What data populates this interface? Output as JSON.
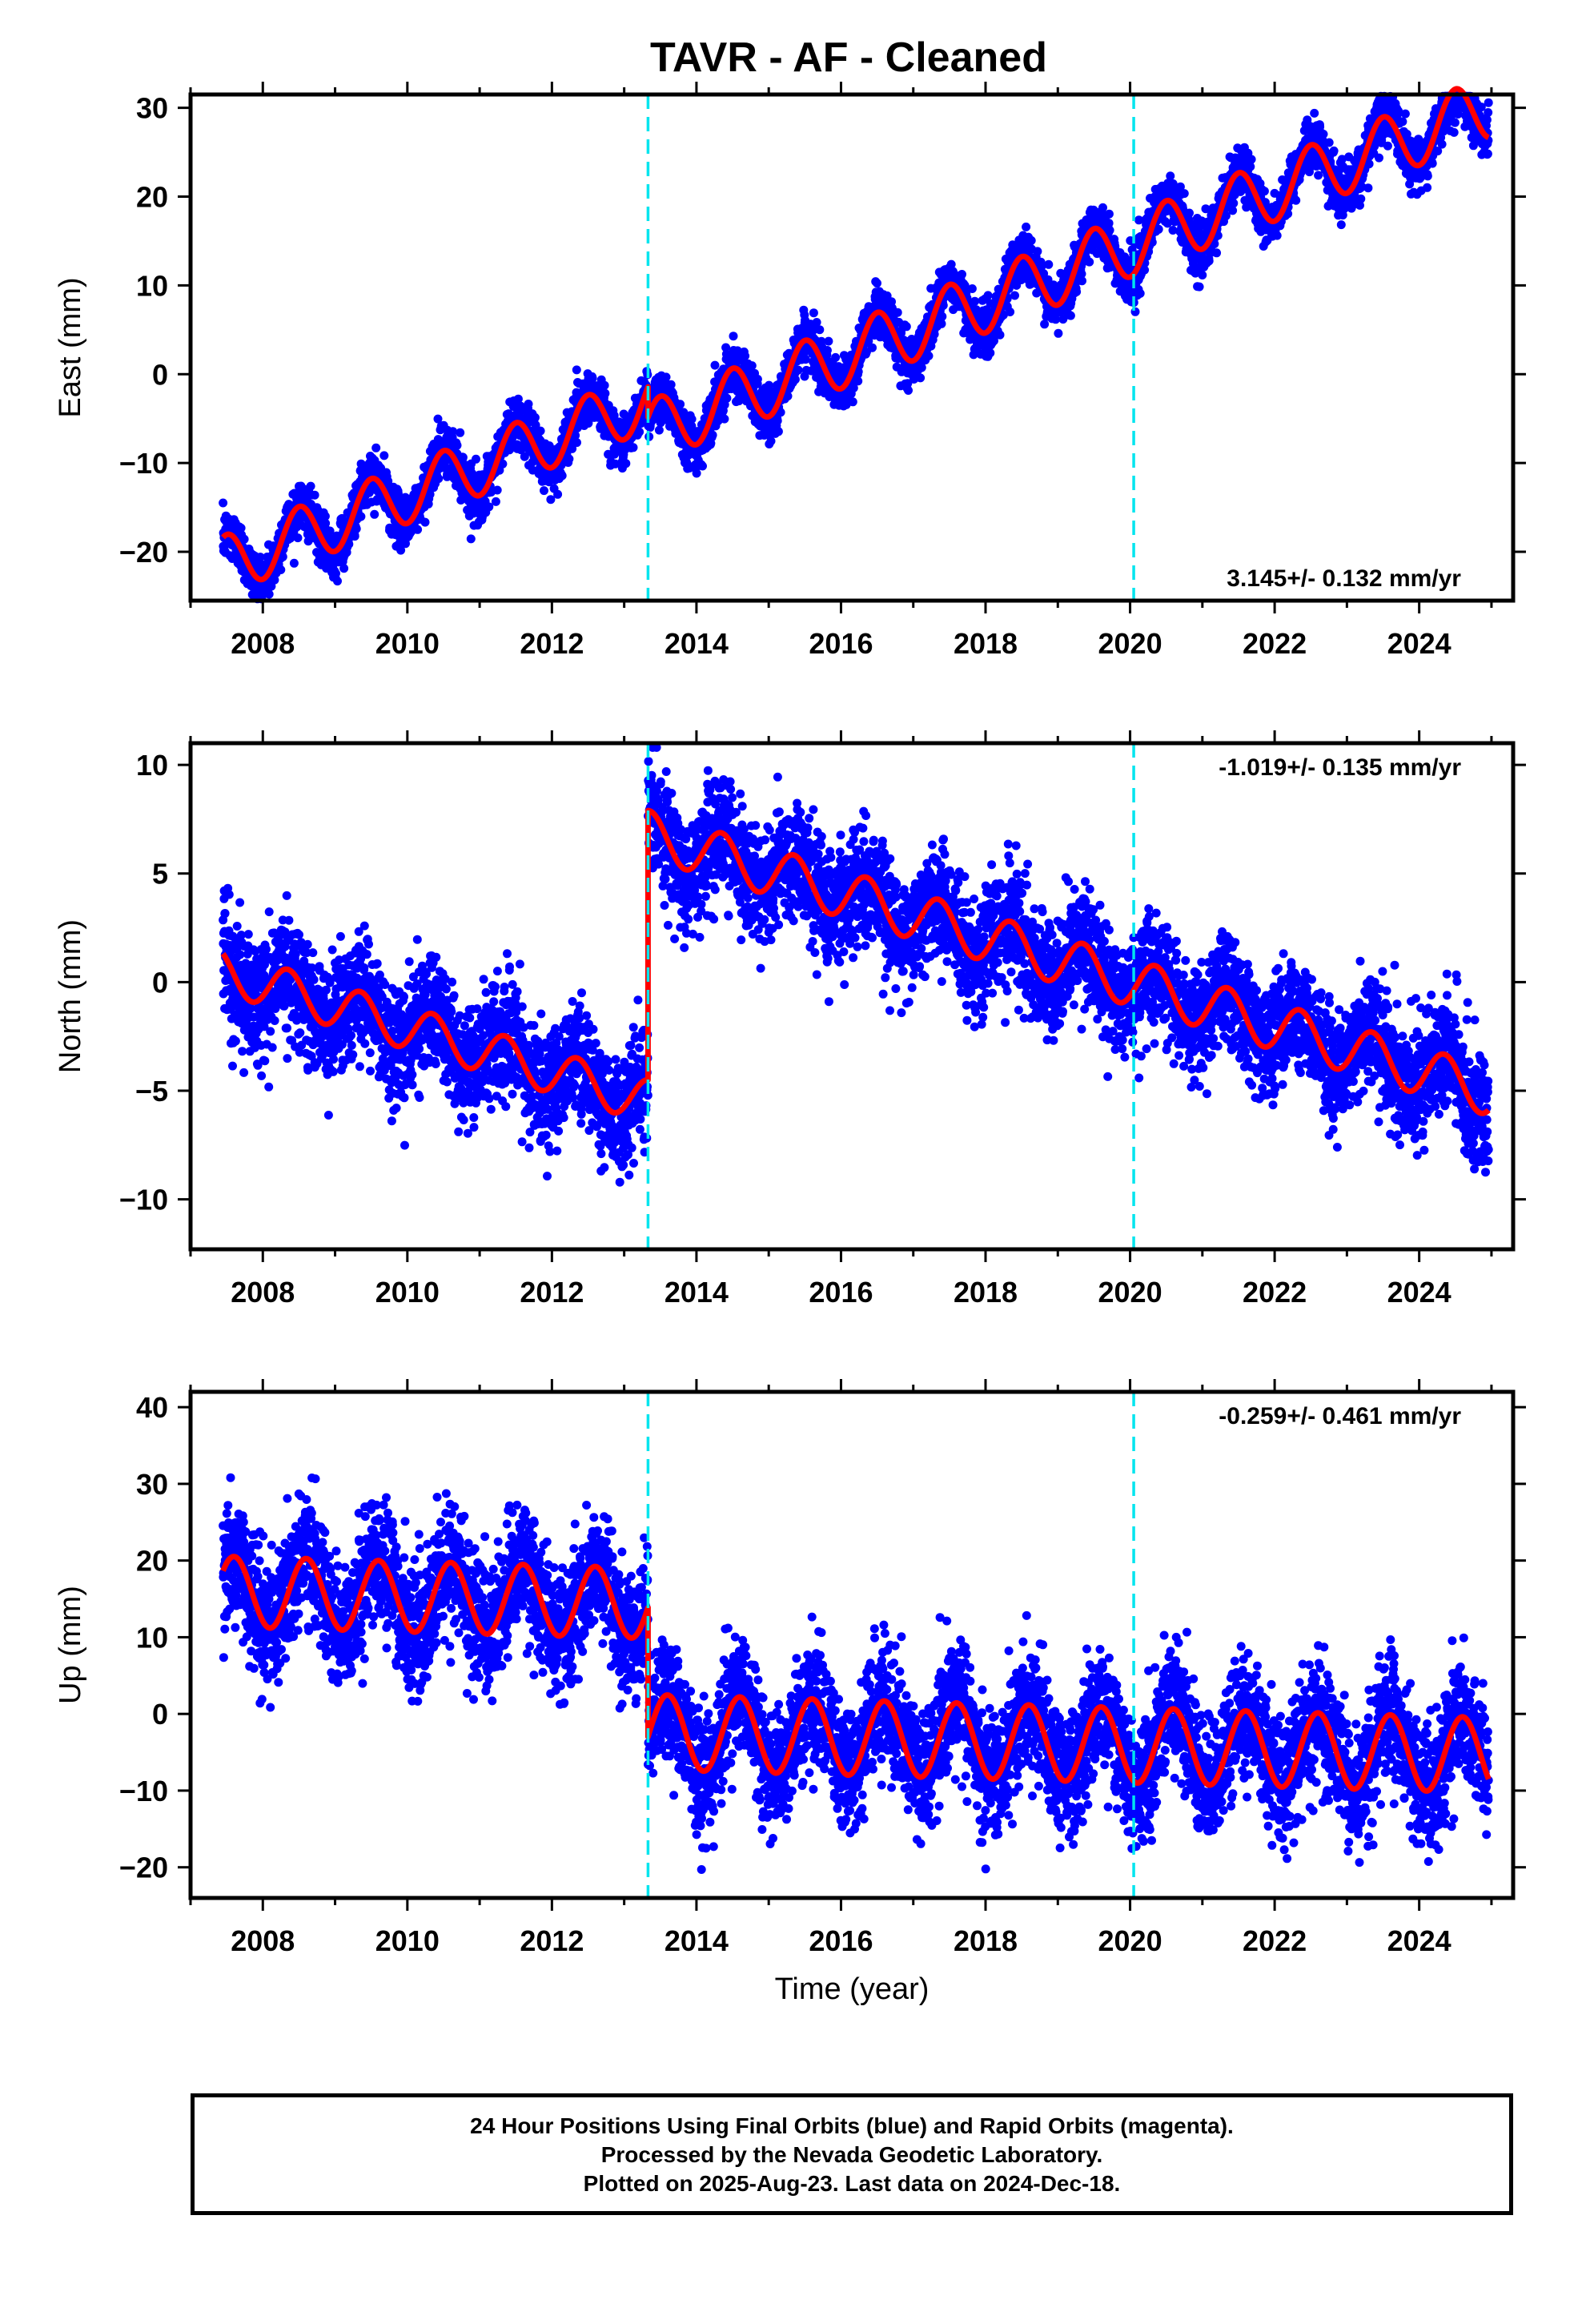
{
  "title": "TAVR  - AF - Cleaned",
  "footer": {
    "line1": "24 Hour Positions Using Final Orbits (blue) and Rapid Orbits (magenta).",
    "line2": "Processed by the Nevada Geodetic Laboratory.",
    "line3": "Plotted on 2025-Aug-23. Last data on 2024-Dec-18."
  },
  "colors": {
    "points": "#0000ff",
    "model": "#ff0000",
    "event_lines": "#00e5ee",
    "frame": "#000000"
  },
  "chart_data": [
    {
      "type": "scatter",
      "panel": "east",
      "ylabel": "East (mm)",
      "xlabel": "",
      "xlim": [
        2007.0,
        2025.3
      ],
      "ylim": [
        -25.5,
        31.5
      ],
      "xticks": [
        2008,
        2010,
        2012,
        2014,
        2016,
        2018,
        2020,
        2022,
        2024
      ],
      "yticks": [
        -20,
        -10,
        0,
        10,
        20,
        30
      ],
      "rate_label": "3.145+/- 0.132 mm/yr",
      "rate_position": "bottom-right",
      "event_lines": [
        2013.33,
        2020.05
      ],
      "model": {
        "start": 2007.45,
        "end": 2024.96,
        "rate_mm_per_yr": 3.145,
        "segments": [
          {
            "from": 2007.45,
            "to": 2013.33,
            "offset_at_2010": -13.5,
            "annual_amp": 3.3,
            "annual_peak": 0.5
          },
          {
            "from": 2013.33,
            "to": 2024.96,
            "offset_at_2010": -17.0,
            "annual_amp": 3.5,
            "annual_peak": 0.5
          }
        ],
        "noise_sd": 1.4
      }
    },
    {
      "type": "scatter",
      "panel": "north",
      "ylabel": "North (mm)",
      "xlabel": "",
      "xlim": [
        2007.0,
        2025.3
      ],
      "ylim": [
        -12.3,
        11.0
      ],
      "xticks": [
        2008,
        2010,
        2012,
        2014,
        2016,
        2018,
        2020,
        2022,
        2024
      ],
      "yticks": [
        -10,
        -5,
        0,
        5,
        10
      ],
      "rate_label": "-1.019+/- 0.135 mm/yr",
      "rate_position": "top-right",
      "event_lines": [
        2013.33,
        2020.05
      ],
      "model": {
        "start": 2007.45,
        "end": 2024.96,
        "rate_mm_per_yr": -1.019,
        "segments": [
          {
            "from": 2007.45,
            "to": 2013.33,
            "offset_at_2010": -2.1,
            "annual_amp": 1.0,
            "annual_peak": 0.35
          },
          {
            "from": 2013.33,
            "to": 2024.96,
            "offset_at_2010": 10.2,
            "annual_amp": 1.1,
            "annual_peak": 0.35
          }
        ],
        "noise_sd": 1.3
      }
    },
    {
      "type": "scatter",
      "panel": "up",
      "ylabel": "Up (mm)",
      "xlabel": "Time (year)",
      "xlim": [
        2007.0,
        2025.3
      ],
      "ylim": [
        -24.0,
        42.0
      ],
      "xticks": [
        2008,
        2010,
        2012,
        2014,
        2016,
        2018,
        2020,
        2022,
        2024
      ],
      "yticks": [
        -20,
        -10,
        0,
        10,
        20,
        30,
        40
      ],
      "rate_label": "-0.259+/- 0.461 mm/yr",
      "rate_position": "top-right",
      "event_lines": [
        2013.33,
        2020.05
      ],
      "model": {
        "start": 2007.45,
        "end": 2024.96,
        "rate_mm_per_yr": -0.259,
        "segments": [
          {
            "from": 2007.45,
            "to": 2013.33,
            "offset_at_2010": 15.3,
            "annual_amp": 4.6,
            "annual_peak": 0.6
          },
          {
            "from": 2013.33,
            "to": 2024.96,
            "offset_at_2010": -1.5,
            "annual_amp": 4.9,
            "annual_peak": 0.6
          }
        ],
        "noise_sd": 4.0
      }
    }
  ]
}
